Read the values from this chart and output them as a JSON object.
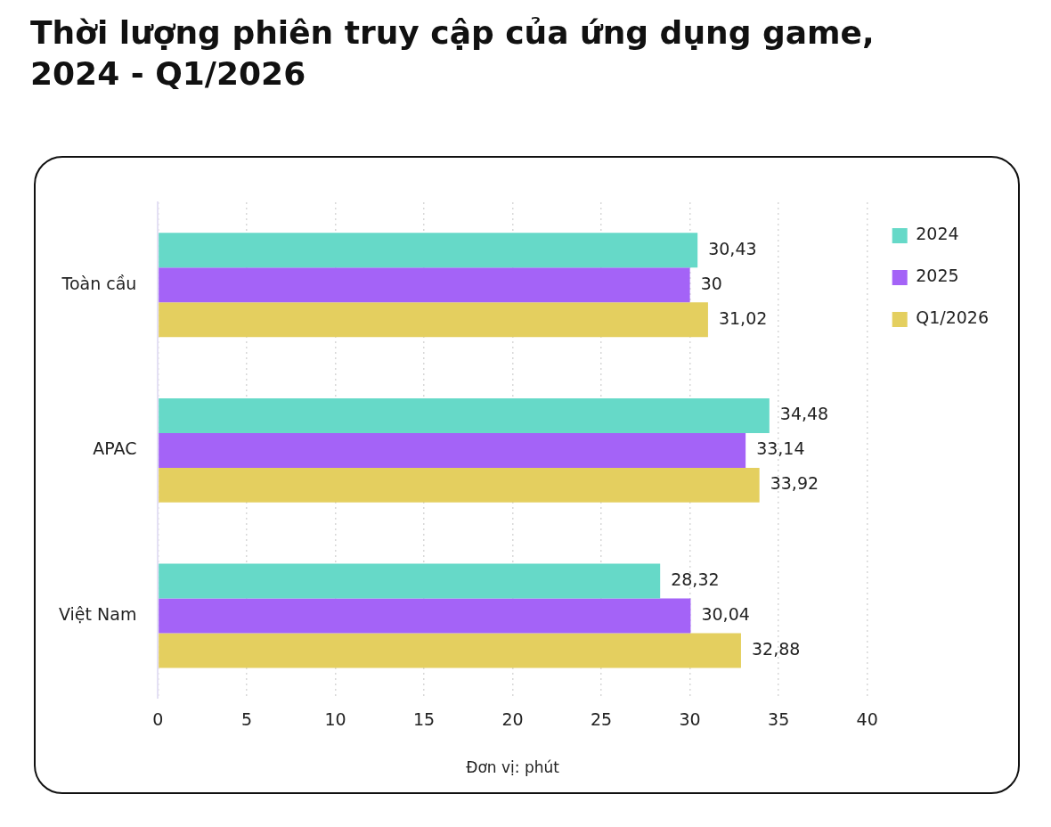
{
  "chart_data": {
    "type": "bar",
    "orientation": "horizontal",
    "title": "Thời lượng phiên truy cập của ứng dụng game, 2024 - Q1/2026",
    "xlabel": "Đơn vị: phút",
    "categories": [
      "Toàn cầu",
      "APAC",
      "Việt Nam"
    ],
    "series": [
      {
        "name": "2024",
        "color": "#66d9c8",
        "values": [
          30.43,
          34.48,
          28.32
        ],
        "value_labels": [
          "30,43",
          "34,48",
          "28,32"
        ]
      },
      {
        "name": "2025",
        "color": "#a463f7",
        "values": [
          30,
          33.14,
          30.04
        ],
        "value_labels": [
          "30",
          "33,14",
          "30,04"
        ]
      },
      {
        "name": "Q1/2026",
        "color": "#e4cf5f",
        "values": [
          31.02,
          33.92,
          32.88
        ],
        "value_labels": [
          "31,02",
          "33,92",
          "32,88"
        ]
      }
    ],
    "xlim": [
      0,
      40
    ],
    "xticks": [
      0,
      5,
      10,
      15,
      20,
      25,
      30,
      35,
      40
    ],
    "grid": "x",
    "legend": "top right"
  }
}
